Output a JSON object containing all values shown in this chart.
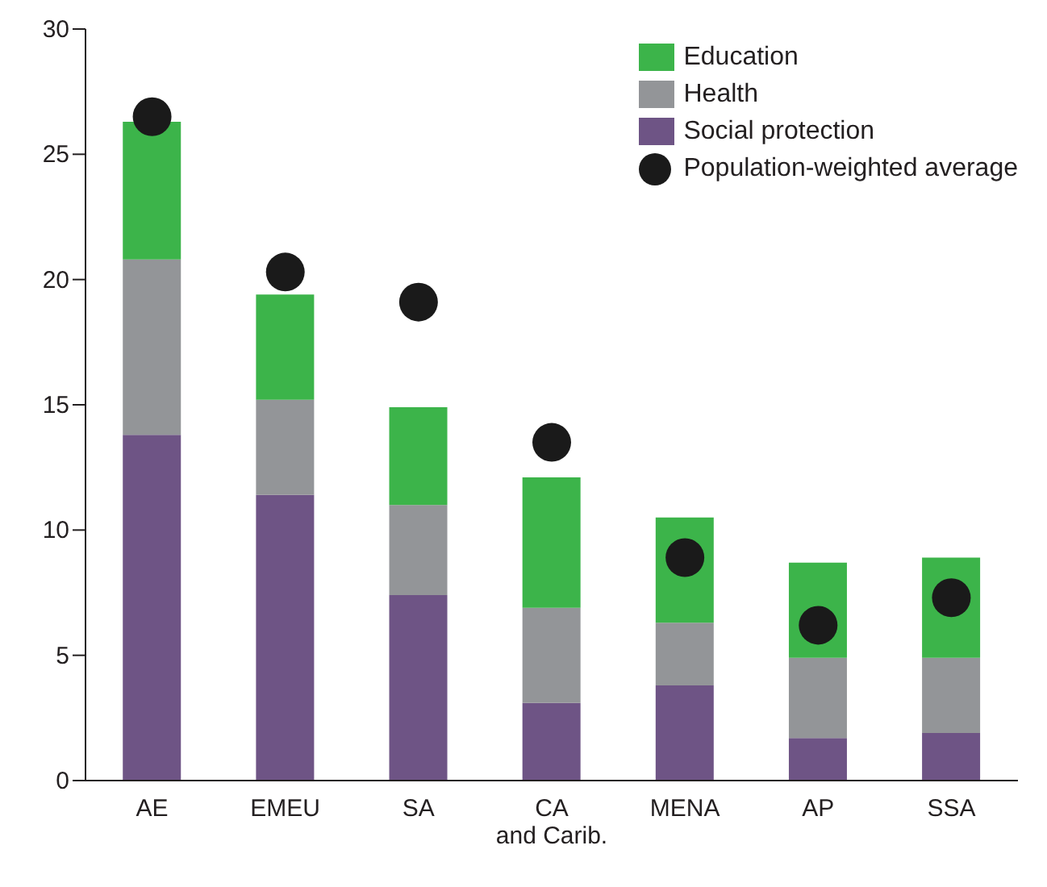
{
  "chart_data": {
    "type": "bar",
    "stacked": true,
    "categories": [
      "AE",
      "EMEU",
      "SA",
      "CA and Carib.",
      "MENA",
      "AP",
      "SSA"
    ],
    "series": [
      {
        "name": "Social protection",
        "color": "#6e5485",
        "values": [
          13.8,
          11.4,
          7.4,
          3.1,
          3.8,
          1.7,
          1.9
        ]
      },
      {
        "name": "Health",
        "color": "#939598",
        "values": [
          7.0,
          3.8,
          3.6,
          3.8,
          2.5,
          3.2,
          3.0
        ]
      },
      {
        "name": "Education",
        "color": "#3cb44a",
        "values": [
          5.5,
          4.2,
          3.9,
          5.2,
          4.2,
          3.8,
          4.0
        ]
      },
      {
        "name": "Population-weighted average",
        "type": "scatter",
        "color": "#1a1a1a",
        "marker": "circle",
        "values": [
          26.5,
          20.3,
          19.1,
          13.5,
          8.9,
          6.2,
          7.3
        ]
      }
    ],
    "ylim": [
      0,
      30
    ],
    "yticks": [
      0,
      5,
      10,
      15,
      20,
      25,
      30
    ],
    "legend": "top right"
  }
}
